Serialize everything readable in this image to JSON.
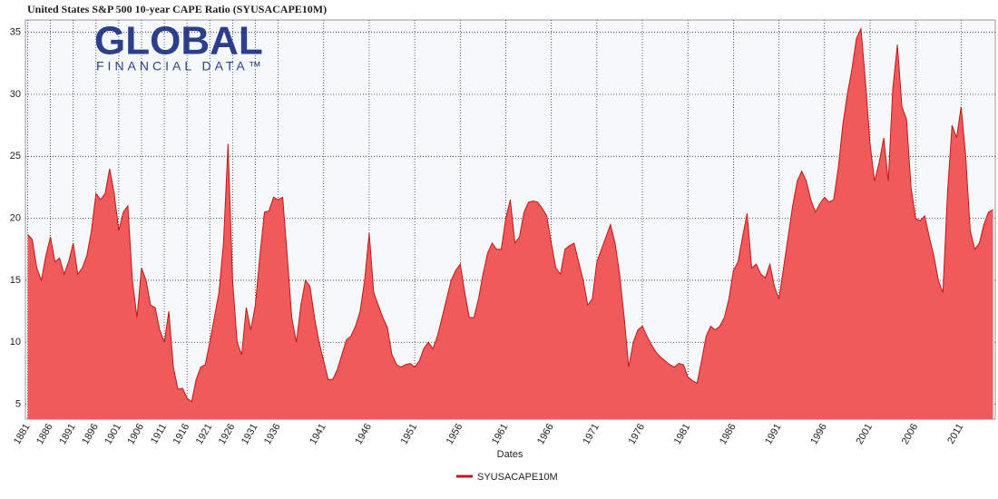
{
  "logo": [
    "GLOBAL",
    "FINANCIAL DATA™"
  ],
  "chart_data": {
    "type": "area",
    "title": "United States S&P 500 10-year CAPE Ratio (SYUSACAPE10M)",
    "x_label": "Dates",
    "categories": [
      "1881",
      null,
      null,
      null,
      null,
      "1886",
      null,
      null,
      null,
      null,
      "1891",
      null,
      null,
      null,
      null,
      "1896",
      null,
      null,
      null,
      null,
      "1901",
      null,
      null,
      null,
      null,
      "1906",
      null,
      null,
      null,
      null,
      "1911",
      null,
      null,
      null,
      null,
      "1916",
      null,
      null,
      null,
      null,
      "1921",
      null,
      null,
      null,
      null,
      "1926",
      null,
      null,
      null,
      null,
      "1931",
      null,
      null,
      null,
      null,
      "1936",
      null,
      null,
      null,
      null,
      null,
      null,
      null,
      null,
      null,
      "1941",
      null,
      null,
      null,
      null,
      null,
      null,
      null,
      null,
      null,
      "1946",
      null,
      null,
      null,
      null,
      null,
      null,
      null,
      null,
      null,
      "1951",
      null,
      null,
      null,
      null,
      null,
      null,
      null,
      null,
      null,
      "1956",
      null,
      null,
      null,
      null,
      null,
      null,
      null,
      null,
      null,
      "1961",
      null,
      null,
      null,
      null,
      null,
      null,
      null,
      null,
      null,
      "1966",
      null,
      null,
      null,
      null,
      null,
      null,
      null,
      null,
      null,
      "1971",
      null,
      null,
      null,
      null,
      null,
      null,
      null,
      null,
      null,
      "1976",
      null,
      null,
      null,
      null,
      null,
      null,
      null,
      null,
      null,
      "1981",
      null,
      null,
      null,
      null,
      null,
      null,
      null,
      null,
      null,
      "1986",
      null,
      null,
      null,
      null,
      null,
      null,
      null,
      null,
      null,
      "1991",
      null,
      null,
      null,
      null,
      null,
      null,
      null,
      null,
      null,
      "1996",
      null,
      null,
      null,
      null,
      null,
      null,
      null,
      null,
      null,
      "2001",
      null,
      null,
      null,
      null,
      null,
      null,
      null,
      null,
      null,
      "2006",
      null,
      null,
      null,
      null,
      null,
      null,
      null,
      null,
      null,
      "2011",
      null,
      null,
      null,
      null,
      null,
      null,
      null
    ],
    "series": [
      {
        "name": "SYUSACAPE10M",
        "color": "#f05a5a",
        "line_color": "#c01818",
        "values": [
          18.7,
          18.3,
          16,
          15,
          17,
          18.5,
          16.5,
          16.8,
          15.5,
          16.5,
          18,
          15.5,
          16,
          17,
          19,
          22,
          21.5,
          22,
          24,
          22,
          19,
          20.5,
          21,
          15,
          12,
          16,
          15,
          13,
          12.8,
          11,
          10,
          12.5,
          8,
          6.2,
          6.3,
          5.5,
          5.2,
          7,
          8,
          8.2,
          10,
          12,
          14,
          18,
          26,
          15,
          10,
          9,
          12.8,
          11,
          13,
          17,
          20.5,
          20.6,
          21.7,
          21.5,
          21.7,
          17,
          12,
          10,
          13,
          15,
          14.5,
          12,
          10,
          8.5,
          7,
          7,
          7.8,
          9,
          10.2,
          10.5,
          11.3,
          12.5,
          15,
          18.8,
          14,
          13,
          12,
          11.2,
          9,
          8.2,
          8,
          8.2,
          8.3,
          8,
          8.5,
          9.5,
          10,
          9.5,
          10.5,
          12,
          13.5,
          15,
          15.8,
          16.3,
          14,
          12,
          12,
          13.5,
          15.5,
          17.2,
          18,
          17.5,
          17.5,
          20,
          21.5,
          18,
          18.5,
          20.5,
          21.3,
          21.4,
          21.3,
          20.8,
          20.2,
          18,
          16,
          15.5,
          17.5,
          17.8,
          18,
          16.5,
          15,
          13,
          13.5,
          16.5,
          17.5,
          18.5,
          19.5,
          18,
          15.5,
          12,
          8,
          10,
          11,
          11.3,
          10.5,
          9.8,
          9.2,
          8.8,
          8.5,
          8.2,
          8,
          8.3,
          8.2,
          7.2,
          6.9,
          6.7,
          8.5,
          10.5,
          11.3,
          11,
          11.3,
          12,
          13.5,
          15.8,
          16.5,
          18.5,
          20.4,
          16,
          16.3,
          15.5,
          15.2,
          16.3,
          14.5,
          13.5,
          16,
          18.5,
          21,
          23,
          23.8,
          23,
          21.5,
          20.5,
          21.2,
          21.7,
          21.3,
          21.5,
          24,
          27.5,
          30,
          32,
          34.5,
          35.3,
          31,
          26,
          23,
          24.5,
          26.5,
          23,
          30.5,
          34,
          29,
          28,
          22.5,
          20,
          19.8,
          20.2,
          18.5,
          17,
          15,
          14,
          22,
          27.5,
          26.5,
          29,
          25,
          19,
          17.5,
          18,
          19.5,
          20.5,
          20.7
        ]
      }
    ],
    "ylim": [
      3.8,
      36
    ],
    "yticks": [
      5,
      10,
      15,
      20,
      25,
      30,
      35
    ],
    "grid": true
  }
}
